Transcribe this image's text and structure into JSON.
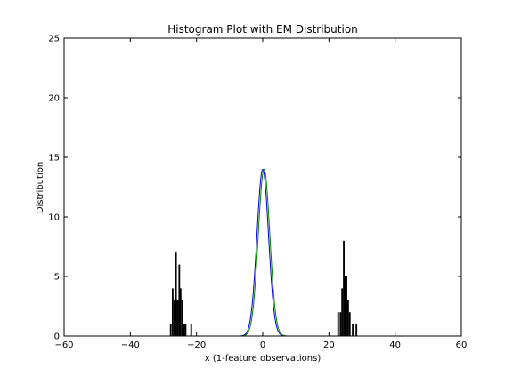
{
  "chart_data": {
    "type": "bar",
    "title": "Histogram Plot with EM Distribution",
    "xlabel": "x (1-feature observations)",
    "ylabel": "Distribution",
    "xlim": [
      -60,
      60
    ],
    "ylim": [
      0,
      25
    ],
    "xticks": [
      -60,
      -40,
      -20,
      0,
      20,
      40,
      60
    ],
    "yticks": [
      0,
      5,
      10,
      15,
      20,
      25
    ],
    "grid": false,
    "histogram": {
      "color": "#000000",
      "bin_width": 0.5,
      "bins": [
        {
          "x": -27.8,
          "count": 1
        },
        {
          "x": -27.2,
          "count": 4
        },
        {
          "x": -26.7,
          "count": 3
        },
        {
          "x": -26.2,
          "count": 7
        },
        {
          "x": -25.7,
          "count": 3
        },
        {
          "x": -25.2,
          "count": 6
        },
        {
          "x": -24.8,
          "count": 4
        },
        {
          "x": -24.3,
          "count": 3
        },
        {
          "x": -23.8,
          "count": 1
        },
        {
          "x": -23.3,
          "count": 1
        },
        {
          "x": -21.6,
          "count": 1
        },
        {
          "x": 22.8,
          "count": 2
        },
        {
          "x": 23.5,
          "count": 2
        },
        {
          "x": 24.0,
          "count": 4
        },
        {
          "x": 24.5,
          "count": 8
        },
        {
          "x": 24.9,
          "count": 5
        },
        {
          "x": 25.3,
          "count": 5
        },
        {
          "x": 25.8,
          "count": 3
        },
        {
          "x": 26.3,
          "count": 2
        },
        {
          "x": 27.2,
          "count": 1
        },
        {
          "x": 28.3,
          "count": 1
        }
      ]
    },
    "series": [
      {
        "type": "line",
        "color": "#0000cc",
        "mean": 0.0,
        "std": 1.75,
        "peak": 14.0
      },
      {
        "type": "line",
        "color": "#008000",
        "mean": 0.4,
        "std": 1.75,
        "peak": 14.0
      }
    ]
  }
}
